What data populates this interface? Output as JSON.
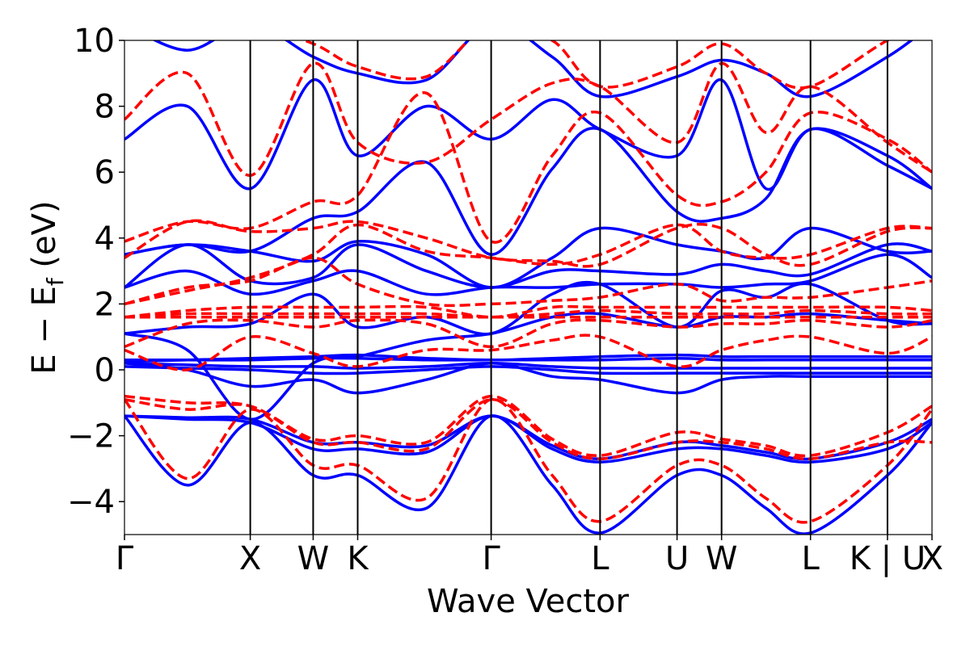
{
  "chart_data": {
    "type": "line",
    "xlabel": "Wave Vector",
    "ylabel": "E − E_f (eV)",
    "ylabel_main": "E  −  E",
    "ylabel_sub": "f",
    "ylabel_unit": " (eV)",
    "ylim": [
      -5,
      10
    ],
    "yticks": [
      -4,
      -2,
      0,
      2,
      4,
      6,
      8,
      10
    ],
    "ytick_labels": [
      "−4",
      "−2",
      "0",
      "2",
      "4",
      "6",
      "8",
      "10"
    ],
    "kpath_ticks": [
      {
        "label": "Γ",
        "x": 0.0
      },
      {
        "label": "X",
        "x": 1.0
      },
      {
        "label": "W",
        "x": 1.5
      },
      {
        "label": "K",
        "x": 1.854
      },
      {
        "label": "Γ",
        "x": 2.915
      },
      {
        "label": "L",
        "x": 3.781
      },
      {
        "label": "U",
        "x": 4.393
      },
      {
        "label": "W",
        "x": 4.747
      },
      {
        "label": "L",
        "x": 5.454
      },
      {
        "label": "K | U",
        "x": 6.066
      },
      {
        "label": "X",
        "x": 6.42
      }
    ],
    "grid": false,
    "legend": "none",
    "series_styles": [
      {
        "color": "#0000ff",
        "dash": "solid"
      },
      {
        "color": "#ff0000",
        "dash": "dashed"
      }
    ],
    "series": [
      {
        "style": 0,
        "x": [
          0,
          0.5,
          1.0,
          1.5,
          1.854,
          2.4,
          2.915,
          3.4,
          3.781,
          4.393,
          4.747,
          5.1,
          5.454,
          6.066,
          6.42
        ],
        "y": [
          -1.4,
          -3.5,
          -1.6,
          -3.2,
          -3.2,
          -4.2,
          -1.4,
          -3.5,
          -4.95,
          -3.2,
          -3.2,
          -4.2,
          -4.95,
          -3.2,
          -1.6
        ]
      },
      {
        "style": 0,
        "x": [
          0,
          0.5,
          1.0,
          1.5,
          1.854,
          2.4,
          2.915,
          3.4,
          3.781,
          4.393,
          4.747,
          5.1,
          5.454,
          6.066,
          6.42
        ],
        "y": [
          -1.4,
          -1.5,
          -1.6,
          -2.4,
          -2.4,
          -2.5,
          -1.4,
          -2.4,
          -2.8,
          -2.4,
          -2.4,
          -2.6,
          -2.8,
          -2.4,
          -1.6
        ]
      },
      {
        "style": 0,
        "x": [
          0,
          0.5,
          1.0,
          1.5,
          1.854,
          2.4,
          2.915,
          3.4,
          3.781,
          4.393,
          4.747,
          5.1,
          5.454,
          6.066,
          6.42
        ],
        "y": [
          -1.4,
          -1.45,
          -1.5,
          -2.2,
          -2.2,
          -2.3,
          -1.4,
          -2.3,
          -2.7,
          -2.2,
          -2.3,
          -2.5,
          -2.7,
          -2.2,
          -1.5
        ]
      },
      {
        "style": 0,
        "x": [
          0,
          0.5,
          1.0,
          1.5,
          1.854,
          2.4,
          2.915,
          3.4,
          3.781,
          4.393,
          4.747,
          5.1,
          5.454,
          6.066,
          6.42
        ],
        "y": [
          0.2,
          0.0,
          -0.5,
          -0.3,
          -0.7,
          -0.3,
          0.2,
          -0.2,
          -0.3,
          -0.7,
          -0.3,
          -0.2,
          -0.2,
          -0.2,
          -0.2
        ]
      },
      {
        "style": 0,
        "x": [
          0,
          0.5,
          1.0,
          1.5,
          1.854,
          2.4,
          2.915,
          3.4,
          3.781,
          4.393,
          4.747,
          5.1,
          5.454,
          6.066,
          6.42
        ],
        "y": [
          0.1,
          0.05,
          0.0,
          -0.1,
          -0.1,
          0.0,
          0.1,
          0.0,
          -0.1,
          -0.1,
          -0.1,
          -0.1,
          -0.1,
          -0.1,
          -0.1
        ]
      },
      {
        "style": 0,
        "x": [
          0,
          0.5,
          1.0,
          1.5,
          1.854,
          2.4,
          2.915,
          3.4,
          3.781,
          4.393,
          4.747,
          5.1,
          5.454,
          6.066,
          6.42
        ],
        "y": [
          0.2,
          0.15,
          0.1,
          0.1,
          0.05,
          0.1,
          0.2,
          0.1,
          0.05,
          0.05,
          0.05,
          0.05,
          0.05,
          0.05,
          0.05
        ]
      },
      {
        "style": 0,
        "x": [
          0,
          0.5,
          1.0,
          1.5,
          1.854,
          2.4,
          2.915,
          3.4,
          3.781,
          4.393,
          4.747,
          5.1,
          5.454,
          6.066,
          6.42
        ],
        "y": [
          0.25,
          0.3,
          0.35,
          0.4,
          0.45,
          0.35,
          0.3,
          0.35,
          0.4,
          0.45,
          0.4,
          0.4,
          0.4,
          0.4,
          0.4
        ]
      },
      {
        "style": 0,
        "x": [
          0,
          0.5,
          1.0,
          1.5,
          1.854,
          2.4,
          2.915,
          3.4,
          3.781,
          4.393,
          4.747,
          5.1,
          5.454,
          6.066,
          6.42
        ],
        "y": [
          0.3,
          0.3,
          0.3,
          0.35,
          0.35,
          0.3,
          0.3,
          0.3,
          0.3,
          0.35,
          0.3,
          0.3,
          0.3,
          0.3,
          0.3
        ]
      },
      {
        "style": 0,
        "x": [
          0,
          0.5,
          1.0,
          1.5,
          1.854,
          2.4,
          2.915,
          3.4,
          3.781,
          4.393,
          4.747,
          5.1,
          5.454,
          6.066,
          6.42
        ],
        "y": [
          1.1,
          0.6,
          -1.5,
          0.2,
          0.4,
          0.9,
          1.1,
          1.6,
          1.7,
          1.3,
          1.6,
          1.6,
          1.7,
          1.5,
          1.4
        ]
      },
      {
        "style": 0,
        "x": [
          0,
          0.5,
          1.0,
          1.5,
          1.854,
          2.4,
          2.915,
          3.4,
          3.781,
          4.393,
          4.747,
          5.1,
          5.454,
          6.066,
          6.42
        ],
        "y": [
          1.1,
          1.3,
          1.4,
          2.3,
          1.3,
          1.6,
          1.1,
          2.3,
          2.6,
          1.3,
          2.4,
          2.2,
          2.6,
          1.5,
          1.4
        ]
      },
      {
        "style": 0,
        "x": [
          0,
          0.5,
          1.0,
          1.5,
          1.854,
          2.4,
          2.915,
          3.4,
          3.781,
          4.393,
          4.747,
          5.1,
          5.454,
          6.066,
          6.42
        ],
        "y": [
          2.5,
          3.0,
          2.3,
          2.7,
          3.0,
          2.3,
          2.5,
          2.5,
          2.6,
          2.6,
          2.5,
          2.6,
          2.7,
          3.5,
          2.8
        ]
      },
      {
        "style": 0,
        "x": [
          0,
          0.5,
          1.0,
          1.5,
          1.854,
          2.4,
          2.915,
          3.4,
          3.781,
          4.393,
          4.747,
          5.1,
          5.454,
          6.066,
          6.42
        ],
        "y": [
          2.5,
          3.8,
          2.7,
          2.8,
          3.8,
          3.0,
          2.5,
          3.0,
          3.0,
          2.9,
          3.2,
          3.0,
          2.9,
          3.8,
          3.6
        ]
      },
      {
        "style": 0,
        "x": [
          0,
          0.5,
          1.0,
          1.5,
          1.854,
          2.4,
          2.915,
          3.4,
          3.781,
          4.393,
          4.747,
          5.1,
          5.454,
          6.066,
          6.42
        ],
        "y": [
          3.5,
          3.8,
          3.6,
          3.3,
          3.9,
          3.5,
          2.5,
          3.4,
          4.3,
          3.8,
          3.6,
          3.4,
          4.3,
          3.6,
          3.6
        ]
      },
      {
        "style": 0,
        "x": [
          0,
          0.5,
          1.0,
          1.5,
          1.854,
          2.4,
          2.915,
          3.4,
          3.781,
          4.393,
          4.747,
          5.1,
          5.454,
          6.066,
          6.42
        ],
        "y": [
          3.5,
          3.8,
          3.6,
          4.6,
          4.8,
          6.3,
          3.5,
          6.1,
          7.3,
          4.8,
          4.6,
          5.2,
          7.3,
          6.2,
          5.5
        ]
      },
      {
        "style": 0,
        "x": [
          0,
          0.5,
          1.0,
          1.5,
          1.854,
          2.4,
          2.915,
          3.4,
          3.781,
          4.393,
          4.747,
          5.1,
          5.454,
          6.066,
          6.42
        ],
        "y": [
          7.0,
          8.0,
          5.5,
          8.8,
          6.5,
          8.0,
          7.0,
          8.2,
          7.3,
          6.5,
          8.8,
          5.5,
          7.3,
          6.5,
          5.5
        ]
      },
      {
        "style": 0,
        "x": [
          0,
          0.5,
          1.0,
          1.5,
          1.854,
          2.4,
          2.915,
          3.4,
          3.781,
          4.393,
          4.747,
          5.1,
          5.454,
          6.066,
          6.42
        ],
        "y": [
          10.5,
          9.7,
          10.5,
          9.5,
          9.0,
          8.8,
          10.5,
          9.5,
          8.3,
          8.9,
          9.4,
          9.0,
          8.3,
          9.5,
          10.5
        ]
      },
      {
        "style": 1,
        "x": [
          0,
          0.5,
          1.0,
          1.5,
          1.854,
          2.4,
          2.915,
          3.4,
          3.781,
          4.393,
          4.747,
          5.1,
          5.454,
          6.066,
          6.42
        ],
        "y": [
          -0.9,
          -3.3,
          -1.2,
          -2.9,
          -2.9,
          -3.9,
          -0.9,
          -3.2,
          -4.6,
          -2.9,
          -2.9,
          -3.9,
          -4.6,
          -2.9,
          -1.2
        ]
      },
      {
        "style": 1,
        "x": [
          0,
          0.5,
          1.0,
          1.5,
          1.854,
          2.4,
          2.915,
          3.4,
          3.781,
          4.393,
          4.747,
          5.1,
          5.454,
          6.066,
          6.42
        ],
        "y": [
          -0.9,
          -1.2,
          -1.1,
          -2.2,
          -2.2,
          -2.4,
          -0.9,
          -2.2,
          -2.7,
          -2.2,
          -2.2,
          -2.4,
          -2.7,
          -2.2,
          -2.2
        ]
      },
      {
        "style": 1,
        "x": [
          0,
          0.5,
          1.0,
          1.5,
          1.854,
          2.4,
          2.915,
          3.4,
          3.781,
          4.393,
          4.747,
          5.1,
          5.454,
          6.066,
          6.42
        ],
        "y": [
          -0.8,
          -1.0,
          -1.1,
          -2.1,
          -2.0,
          -2.2,
          -0.8,
          -2.1,
          -2.6,
          -1.9,
          -2.1,
          -2.3,
          -2.6,
          -1.9,
          -1.1
        ]
      },
      {
        "style": 1,
        "x": [
          0,
          0.5,
          1.0,
          1.5,
          1.854,
          2.4,
          2.915,
          3.4,
          3.781,
          4.393,
          4.747,
          5.1,
          5.454,
          6.066,
          6.42
        ],
        "y": [
          0.6,
          0.0,
          1.0,
          0.5,
          0.1,
          0.6,
          0.6,
          0.9,
          1.0,
          0.1,
          0.6,
          0.9,
          1.0,
          0.5,
          1.0
        ]
      },
      {
        "style": 1,
        "x": [
          0,
          0.5,
          1.0,
          1.5,
          1.854,
          2.4,
          2.915,
          3.4,
          3.781,
          4.393,
          4.747,
          5.1,
          5.454,
          6.066,
          6.42
        ],
        "y": [
          0.7,
          1.4,
          1.5,
          1.3,
          1.5,
          1.4,
          0.7,
          1.4,
          1.5,
          1.3,
          1.4,
          1.4,
          1.5,
          1.3,
          1.5
        ]
      },
      {
        "style": 1,
        "x": [
          0,
          0.5,
          1.0,
          1.5,
          1.854,
          2.4,
          2.915,
          3.4,
          3.781,
          4.393,
          4.747,
          5.1,
          5.454,
          6.066,
          6.42
        ],
        "y": [
          1.6,
          1.6,
          1.6,
          1.6,
          1.6,
          1.6,
          1.6,
          1.6,
          1.6,
          1.6,
          1.6,
          1.6,
          1.6,
          1.6,
          1.6
        ]
      },
      {
        "style": 1,
        "x": [
          0,
          0.5,
          1.0,
          1.5,
          1.854,
          2.4,
          2.915,
          3.4,
          3.781,
          4.393,
          4.747,
          5.1,
          5.454,
          6.066,
          6.42
        ],
        "y": [
          1.6,
          1.7,
          1.7,
          1.7,
          1.7,
          1.7,
          1.6,
          1.7,
          1.8,
          1.7,
          1.7,
          1.7,
          1.8,
          1.7,
          1.7
        ]
      },
      {
        "style": 1,
        "x": [
          0,
          0.5,
          1.0,
          1.5,
          1.854,
          2.4,
          2.915,
          3.4,
          3.781,
          4.393,
          4.747,
          5.1,
          5.454,
          6.066,
          6.42
        ],
        "y": [
          1.6,
          1.8,
          1.9,
          1.9,
          1.9,
          1.9,
          1.6,
          1.9,
          1.9,
          1.9,
          1.9,
          1.9,
          1.9,
          1.9,
          1.8
        ]
      },
      {
        "style": 1,
        "x": [
          0,
          0.5,
          1.0,
          1.5,
          1.854,
          2.4,
          2.915,
          3.4,
          3.781,
          4.393,
          4.747,
          5.1,
          5.454,
          6.066,
          6.42
        ],
        "y": [
          2.0,
          2.5,
          2.7,
          3.4,
          2.6,
          2.0,
          2.0,
          2.1,
          2.2,
          2.6,
          2.1,
          2.2,
          2.2,
          2.5,
          2.7
        ]
      },
      {
        "style": 1,
        "x": [
          0,
          0.5,
          1.0,
          1.5,
          1.854,
          2.4,
          2.915,
          3.4,
          3.781,
          4.393,
          4.747,
          5.1,
          5.454,
          6.066,
          6.42
        ],
        "y": [
          2.0,
          2.4,
          2.8,
          3.5,
          4.4,
          3.6,
          3.4,
          3.2,
          3.5,
          4.4,
          3.6,
          3.4,
          3.5,
          4.3,
          4.3
        ]
      },
      {
        "style": 1,
        "x": [
          0,
          0.5,
          1.0,
          1.5,
          1.854,
          2.4,
          2.915,
          3.4,
          3.781,
          4.393,
          4.747,
          5.1,
          5.454,
          6.066,
          6.42
        ],
        "y": [
          3.4,
          4.5,
          4.2,
          4.3,
          4.5,
          4.0,
          3.4,
          3.3,
          3.2,
          4.3,
          4.3,
          3.5,
          3.2,
          4.2,
          4.3
        ]
      },
      {
        "style": 1,
        "x": [
          0,
          0.5,
          1.0,
          1.5,
          1.854,
          2.4,
          2.915,
          3.4,
          3.781,
          4.393,
          4.747,
          5.1,
          5.454,
          6.066,
          6.42
        ],
        "y": [
          3.9,
          4.5,
          4.3,
          5.1,
          5.3,
          8.4,
          3.9,
          6.5,
          7.8,
          5.3,
          5.1,
          6.0,
          7.8,
          7.0,
          6.0
        ]
      },
      {
        "style": 1,
        "x": [
          0,
          0.5,
          1.0,
          1.5,
          1.854,
          2.4,
          2.915,
          3.4,
          3.781,
          4.393,
          4.747,
          5.1,
          5.454,
          6.066,
          6.42
        ],
        "y": [
          7.6,
          9.0,
          5.9,
          9.3,
          6.9,
          6.3,
          7.6,
          8.7,
          8.6,
          6.9,
          9.3,
          7.2,
          8.6,
          6.9,
          6.0
        ]
      },
      {
        "style": 1,
        "x": [
          0,
          0.5,
          1.0,
          1.5,
          1.854,
          2.4,
          2.915,
          3.4,
          3.781,
          4.393,
          4.747,
          5.1,
          5.454,
          6.066,
          6.42
        ],
        "y": [
          10.5,
          10.5,
          10.5,
          9.9,
          9.2,
          8.9,
          10.5,
          10.0,
          8.6,
          9.2,
          9.9,
          9.0,
          8.6,
          10.0,
          10.5
        ]
      }
    ]
  }
}
